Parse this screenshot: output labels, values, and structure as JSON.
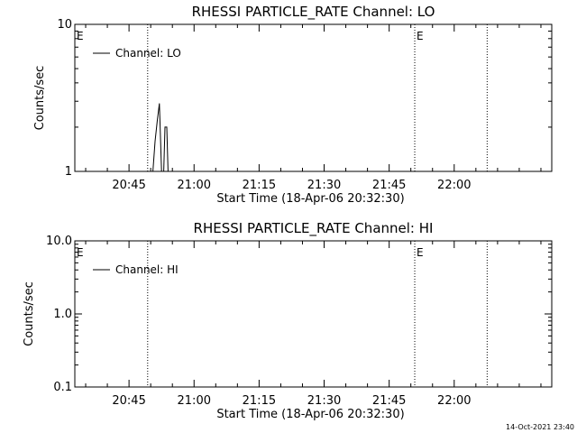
{
  "footer": {
    "timestamp": "14-Oct-2021 23:40"
  },
  "colors": {
    "foreground": "#000000",
    "background": "#ffffff"
  },
  "chart_data": [
    {
      "type": "line",
      "title": "RHESSI PARTICLE_RATE Channel: LO",
      "xlabel": "Start Time (18-Apr-06 20:32:30)",
      "ylabel": "Counts/sec",
      "yscale": "log",
      "ylim": [
        1,
        10
      ],
      "y_ticks": [
        1,
        10
      ],
      "y_tick_labels": [
        "1",
        "10"
      ],
      "x_tick_labels": [
        "20:45",
        "21:00",
        "21:15",
        "21:30",
        "21:45",
        "22:00"
      ],
      "x_tick_minutes": [
        765,
        780,
        795,
        810,
        825,
        840
      ],
      "x_range_minutes": [
        752.5,
        862.5
      ],
      "legend": "Channel: LO",
      "legend_position": "top-left",
      "markers": [
        {
          "label": "E",
          "minute": 752.5,
          "style": "letter"
        },
        {
          "minute": 769.3,
          "style": "dotted"
        },
        {
          "label": "E",
          "minute": 830.9,
          "style": "dotted"
        },
        {
          "minute": 847.6,
          "style": "dotted"
        }
      ],
      "series": [
        {
          "name": "Channel: LO",
          "x": [
            770.5,
            771.0,
            771.5,
            772.0,
            772.5,
            773.0,
            773.3,
            773.7,
            774.0,
            774.5
          ],
          "y": [
            1.0,
            1.6,
            2.2,
            2.9,
            1.0,
            1.0,
            2.0,
            2.0,
            1.0,
            1.0
          ]
        }
      ]
    },
    {
      "type": "line",
      "title": "RHESSI PARTICLE_RATE Channel: HI",
      "xlabel": "Start Time (18-Apr-06 20:32:30)",
      "ylabel": "Counts/sec",
      "yscale": "log",
      "ylim": [
        0.1,
        10
      ],
      "y_ticks": [
        0.1,
        1.0,
        10.0
      ],
      "y_tick_labels": [
        "0.1",
        "1.0",
        "10.0"
      ],
      "x_tick_labels": [
        "20:45",
        "21:00",
        "21:15",
        "21:30",
        "21:45",
        "22:00"
      ],
      "x_tick_minutes": [
        765,
        780,
        795,
        810,
        825,
        840
      ],
      "x_range_minutes": [
        752.5,
        862.5
      ],
      "legend": "Channel: HI",
      "legend_position": "top-left",
      "markers": [
        {
          "label": "E",
          "minute": 752.5,
          "style": "letter"
        },
        {
          "minute": 769.3,
          "style": "dotted"
        },
        {
          "label": "E",
          "minute": 830.9,
          "style": "dotted"
        },
        {
          "minute": 847.6,
          "style": "dotted"
        }
      ],
      "series": [
        {
          "name": "Channel: HI",
          "x": [],
          "y": []
        }
      ]
    }
  ]
}
